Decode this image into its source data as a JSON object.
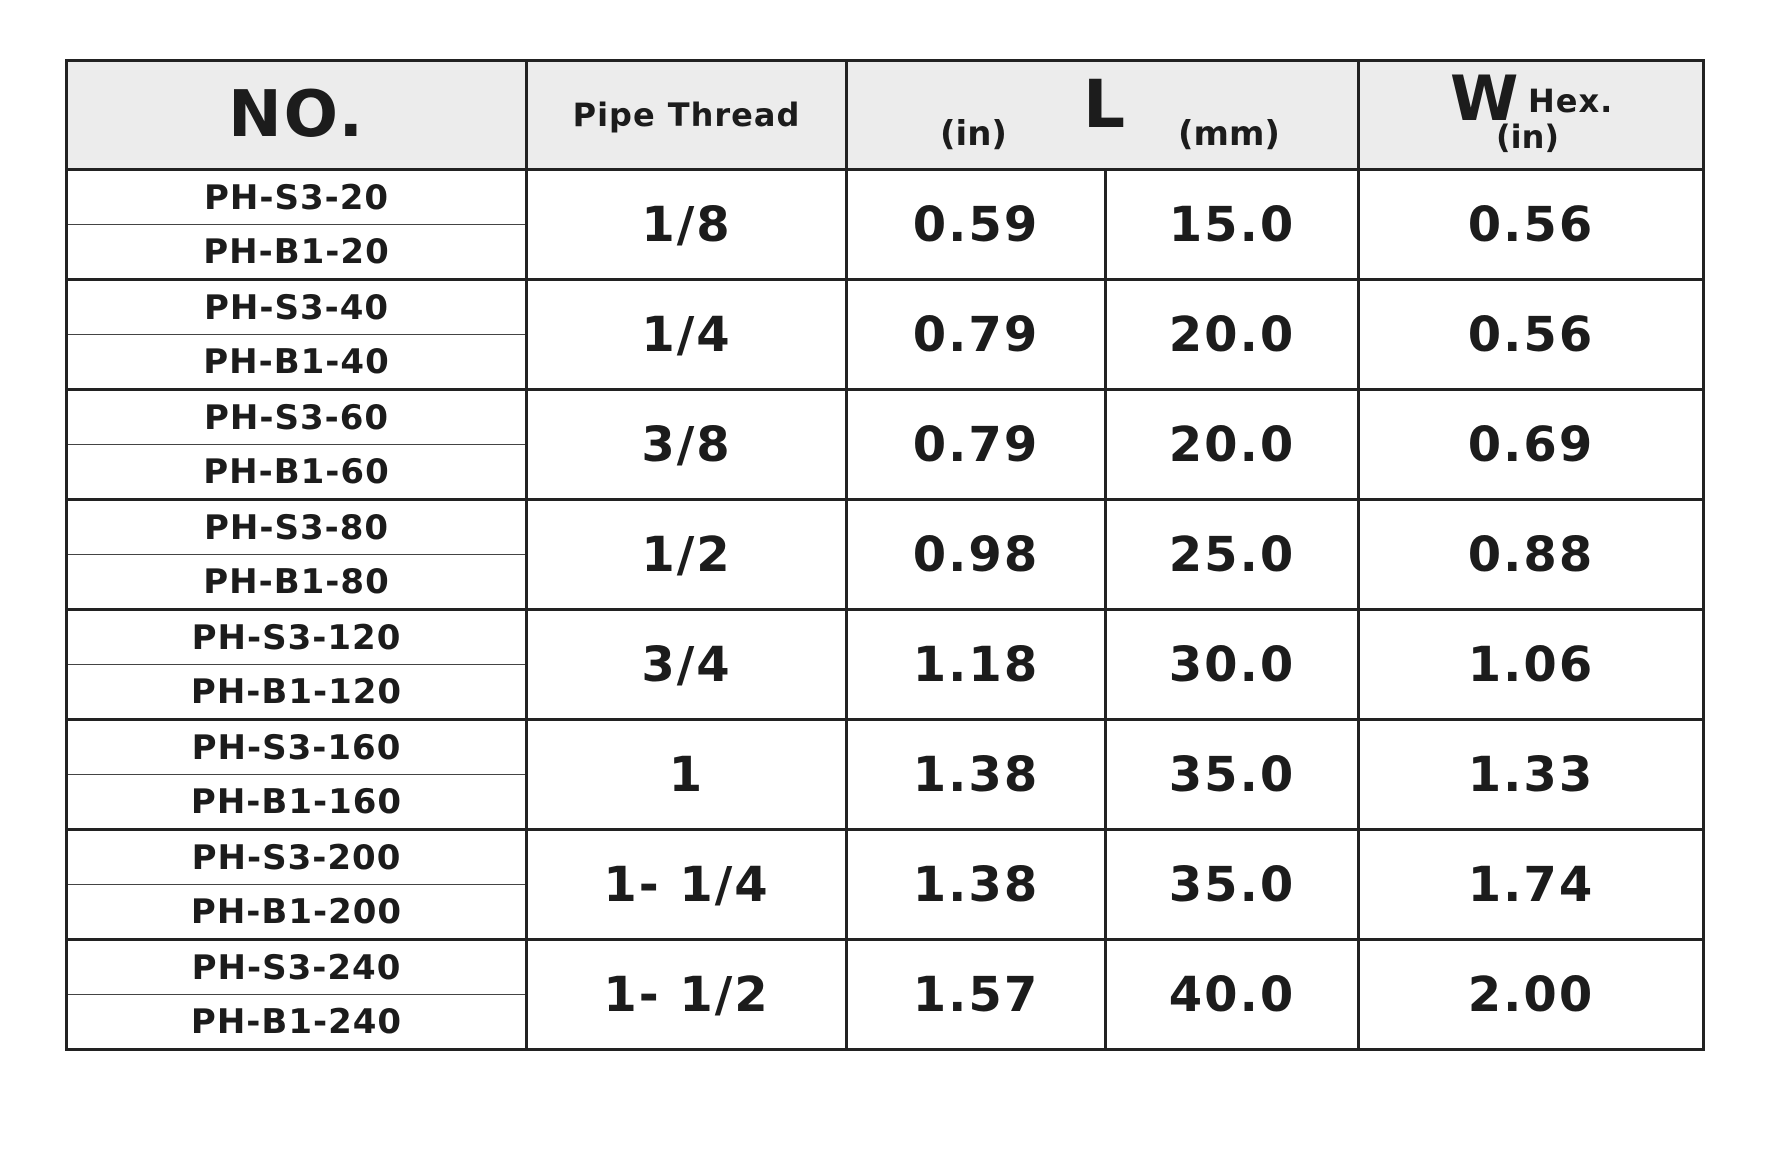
{
  "header": {
    "no": "NO.",
    "pipe_thread": "Pipe Thread",
    "l": "L",
    "l_in": "(in)",
    "l_mm": "(mm)",
    "w": "W",
    "w_hex": "Hex.",
    "w_in": "(in)"
  },
  "table": {
    "rows": [
      {
        "models": [
          "PH-S3-20",
          "PH-B1-20"
        ],
        "thread": "1/8",
        "l_in": "0.59",
        "l_mm": "15.0",
        "w_in": "0.56"
      },
      {
        "models": [
          "PH-S3-40",
          "PH-B1-40"
        ],
        "thread": "1/4",
        "l_in": "0.79",
        "l_mm": "20.0",
        "w_in": "0.56"
      },
      {
        "models": [
          "PH-S3-60",
          "PH-B1-60"
        ],
        "thread": "3/8",
        "l_in": "0.79",
        "l_mm": "20.0",
        "w_in": "0.69"
      },
      {
        "models": [
          "PH-S3-80",
          "PH-B1-80"
        ],
        "thread": "1/2",
        "l_in": "0.98",
        "l_mm": "25.0",
        "w_in": "0.88"
      },
      {
        "models": [
          "PH-S3-120",
          "PH-B1-120"
        ],
        "thread": "3/4",
        "l_in": "1.18",
        "l_mm": "30.0",
        "w_in": "1.06"
      },
      {
        "models": [
          "PH-S3-160",
          "PH-B1-160"
        ],
        "thread": "1",
        "l_in": "1.38",
        "l_mm": "35.0",
        "w_in": "1.33"
      },
      {
        "models": [
          "PH-S3-200",
          "PH-B1-200"
        ],
        "thread": "1- 1/4",
        "l_in": "1.38",
        "l_mm": "35.0",
        "w_in": "1.74"
      },
      {
        "models": [
          "PH-S3-240",
          "PH-B1-240"
        ],
        "thread": "1- 1/2",
        "l_in": "1.57",
        "l_mm": "40.0",
        "w_in": "2.00"
      }
    ]
  }
}
